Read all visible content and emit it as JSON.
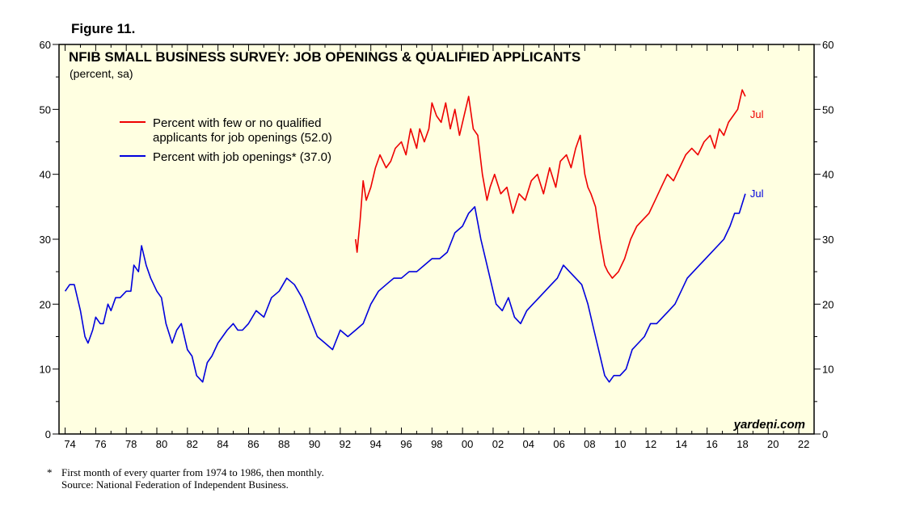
{
  "figure_label": "Figure 11.",
  "footnote": {
    "marker": "*",
    "line1": "First month of every quarter from 1974 to 1986, then monthly.",
    "line2": "Source: National Federation of Independent Business."
  },
  "colors": {
    "series_red": "#ee0000",
    "series_blue": "#0000dd",
    "plot_bg": "#ffffe1"
  },
  "chart_data": {
    "type": "line",
    "title": "NFIB SMALL BUSINESS SURVEY: JOB OPENINGS & QUALIFIED APPLICANTS",
    "subtitle": "(percent, sa)",
    "watermark": "yardeni.com",
    "xlim": [
      1973.6,
      2023.0
    ],
    "ylim": [
      0,
      60
    ],
    "y_ticks": [
      0,
      10,
      20,
      30,
      40,
      50,
      60
    ],
    "y_tick_labels": [
      "0",
      "10",
      "20",
      "30",
      "40",
      "50",
      "60"
    ],
    "x_tick_labels": [
      "74",
      "76",
      "78",
      "80",
      "82",
      "84",
      "86",
      "88",
      "90",
      "92",
      "94",
      "96",
      "98",
      "00",
      "02",
      "04",
      "06",
      "08",
      "10",
      "12",
      "14",
      "16",
      "18",
      "20",
      "22"
    ],
    "x_tick_years": [
      1974,
      1976,
      1978,
      1980,
      1982,
      1984,
      1986,
      1988,
      1990,
      1992,
      1994,
      1996,
      1998,
      2000,
      2002,
      2004,
      2006,
      2008,
      2010,
      2012,
      2014,
      2016,
      2018,
      2020,
      2022
    ],
    "legend_position": "upper-left",
    "series": [
      {
        "name": "Percent with few or no qualified applicants for job openings (52.0)",
        "legend_line1": "Percent with few or no qualified",
        "legend_line2": "applicants for job openings (52.0)",
        "color": "#ee0000",
        "end_label": "Jul",
        "last_value": 52.0,
        "x": [
          1993.0,
          1993.1,
          1993.3,
          1993.5,
          1993.7,
          1994.0,
          1994.3,
          1994.6,
          1995.0,
          1995.3,
          1995.6,
          1996.0,
          1996.3,
          1996.6,
          1997.0,
          1997.2,
          1997.5,
          1997.8,
          1998.0,
          1998.3,
          1998.6,
          1998.9,
          1999.2,
          1999.5,
          1999.8,
          2000.1,
          2000.4,
          2000.7,
          2001.0,
          2001.3,
          2001.6,
          2001.8,
          2002.1,
          2002.5,
          2002.9,
          2003.3,
          2003.7,
          2004.1,
          2004.5,
          2004.9,
          2005.3,
          2005.7,
          2006.1,
          2006.4,
          2006.8,
          2007.1,
          2007.4,
          2007.7,
          2008.0,
          2008.2,
          2008.4,
          2008.7,
          2009.0,
          2009.3,
          2009.5,
          2009.8,
          2010.2,
          2010.6,
          2011.0,
          2011.4,
          2011.8,
          2012.2,
          2012.6,
          2013.0,
          2013.4,
          2013.8,
          2014.2,
          2014.6,
          2015.0,
          2015.4,
          2015.8,
          2016.2,
          2016.5,
          2016.8,
          2017.1,
          2017.4,
          2017.7,
          2018.0,
          2018.3,
          2018.5
        ],
        "values": [
          30,
          28,
          33,
          39,
          36,
          38,
          41,
          43,
          41,
          42,
          44,
          45,
          43,
          47,
          44,
          47,
          45,
          47,
          51,
          49,
          48,
          51,
          47,
          50,
          46,
          49,
          52,
          47,
          46,
          40,
          36,
          38,
          40,
          37,
          38,
          34,
          37,
          36,
          39,
          40,
          37,
          41,
          38,
          42,
          43,
          41,
          44,
          46,
          40,
          38,
          37,
          35,
          30,
          26,
          25,
          24,
          25,
          27,
          30,
          32,
          33,
          34,
          36,
          38,
          40,
          39,
          41,
          43,
          44,
          43,
          45,
          46,
          44,
          47,
          46,
          48,
          49,
          50,
          53,
          52
        ]
      },
      {
        "name": "Percent with job openings* (37.0)",
        "legend_line1": "Percent with job openings* (37.0)",
        "color": "#0000dd",
        "end_label": "Jul",
        "last_value": 37.0,
        "x": [
          1974.0,
          1974.3,
          1974.6,
          1975.0,
          1975.3,
          1975.5,
          1975.8,
          1976.0,
          1976.3,
          1976.5,
          1976.8,
          1977.0,
          1977.3,
          1977.6,
          1978.0,
          1978.3,
          1978.5,
          1978.8,
          1979.0,
          1979.3,
          1979.6,
          1980.0,
          1980.3,
          1980.6,
          1981.0,
          1981.3,
          1981.6,
          1982.0,
          1982.3,
          1982.6,
          1983.0,
          1983.3,
          1983.6,
          1984.0,
          1984.3,
          1984.6,
          1985.0,
          1985.3,
          1985.6,
          1986.0,
          1986.5,
          1987.0,
          1987.5,
          1988.0,
          1988.5,
          1989.0,
          1989.5,
          1990.0,
          1990.5,
          1991.0,
          1991.5,
          1992.0,
          1992.5,
          1993.0,
          1993.5,
          1994.0,
          1994.5,
          1995.0,
          1995.5,
          1996.0,
          1996.5,
          1997.0,
          1997.5,
          1998.0,
          1998.5,
          1999.0,
          1999.5,
          2000.0,
          2000.4,
          2000.8,
          2001.2,
          2001.5,
          2001.8,
          2002.2,
          2002.6,
          2003.0,
          2003.4,
          2003.8,
          2004.2,
          2004.6,
          2005.0,
          2005.4,
          2005.8,
          2006.2,
          2006.6,
          2007.0,
          2007.4,
          2007.8,
          2008.2,
          2008.6,
          2009.0,
          2009.3,
          2009.6,
          2009.9,
          2010.3,
          2010.7,
          2011.1,
          2011.5,
          2011.9,
          2012.3,
          2012.7,
          2013.1,
          2013.5,
          2013.9,
          2014.3,
          2014.7,
          2015.1,
          2015.5,
          2015.9,
          2016.3,
          2016.7,
          2017.1,
          2017.5,
          2017.8,
          2018.1,
          2018.5
        ],
        "values": [
          22,
          23,
          23,
          19,
          15,
          14,
          16,
          18,
          17,
          17,
          20,
          19,
          21,
          21,
          22,
          22,
          26,
          25,
          29,
          26,
          24,
          22,
          21,
          17,
          14,
          16,
          17,
          13,
          12,
          9,
          8,
          11,
          12,
          14,
          15,
          16,
          17,
          16,
          16,
          17,
          19,
          18,
          21,
          22,
          24,
          23,
          21,
          18,
          15,
          14,
          13,
          16,
          15,
          16,
          17,
          20,
          22,
          23,
          24,
          24,
          25,
          25,
          26,
          27,
          27,
          28,
          31,
          32,
          34,
          35,
          30,
          27,
          24,
          20,
          19,
          21,
          18,
          17,
          19,
          20,
          21,
          22,
          23,
          24,
          26,
          25,
          24,
          23,
          20,
          16,
          12,
          9,
          8,
          9,
          9,
          10,
          13,
          14,
          15,
          17,
          17,
          18,
          19,
          20,
          22,
          24,
          25,
          26,
          27,
          28,
          29,
          30,
          32,
          34,
          34,
          37
        ]
      }
    ]
  }
}
